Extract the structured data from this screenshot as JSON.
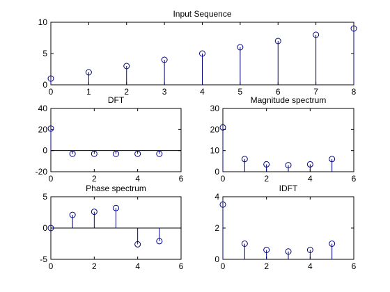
{
  "colors": {
    "stem": "#00007f",
    "background": "#ffffff",
    "axes": "#000000"
  },
  "chart_data": [
    {
      "id": "input",
      "type": "stem",
      "title": "Input Sequence",
      "xlabel": "",
      "ylabel": "",
      "xlim": [
        0,
        8
      ],
      "ylim": [
        0,
        10
      ],
      "xticks": [
        0,
        1,
        2,
        3,
        4,
        5,
        6,
        7,
        8
      ],
      "yticks": [
        0,
        5,
        10
      ],
      "x": [
        0,
        1,
        2,
        3,
        4,
        5,
        6,
        7,
        8
      ],
      "values": [
        1,
        2,
        3,
        4,
        5,
        6,
        7,
        8,
        9
      ],
      "grid": false,
      "baseline": false
    },
    {
      "id": "dft",
      "type": "stem",
      "title": "DFT",
      "xlabel": "",
      "ylabel": "",
      "xlim": [
        0,
        6
      ],
      "ylim": [
        -20,
        40
      ],
      "xticks": [
        0,
        2,
        4,
        6
      ],
      "yticks": [
        -20,
        0,
        20,
        40
      ],
      "x": [
        0,
        1,
        2,
        3,
        4,
        5
      ],
      "values": [
        21,
        -3,
        -3,
        -3,
        -3,
        -3
      ],
      "grid": false,
      "baseline": true
    },
    {
      "id": "magnitude",
      "type": "stem",
      "title": "Magnitude spectrum",
      "xlabel": "",
      "ylabel": "",
      "xlim": [
        0,
        6
      ],
      "ylim": [
        0,
        30
      ],
      "xticks": [
        0,
        2,
        4,
        6
      ],
      "yticks": [
        0,
        10,
        20,
        30
      ],
      "x": [
        0,
        1,
        2,
        3,
        4,
        5
      ],
      "values": [
        21,
        6,
        3.5,
        3.1,
        3.5,
        6
      ],
      "grid": false,
      "baseline": false
    },
    {
      "id": "phase",
      "type": "stem",
      "title": "Phase spectrum",
      "xlabel": "",
      "ylabel": "",
      "xlim": [
        0,
        6
      ],
      "ylim": [
        -5,
        5
      ],
      "xticks": [
        0,
        2,
        4,
        6
      ],
      "yticks": [
        -5,
        0,
        5
      ],
      "x": [
        0,
        1,
        2,
        3,
        4,
        5
      ],
      "values": [
        0,
        2.1,
        2.6,
        3.2,
        -2.6,
        -2.1
      ],
      "grid": false,
      "baseline": true
    },
    {
      "id": "idft",
      "type": "stem",
      "title": "IDFT",
      "xlabel": "",
      "ylabel": "",
      "xlim": [
        0,
        6
      ],
      "ylim": [
        0,
        4
      ],
      "xticks": [
        0,
        2,
        4,
        6
      ],
      "yticks": [
        0,
        2,
        4
      ],
      "x": [
        0,
        1,
        2,
        3,
        4,
        5
      ],
      "values": [
        3.5,
        1,
        0.6,
        0.5,
        0.6,
        1
      ],
      "grid": false,
      "baseline": false
    }
  ]
}
